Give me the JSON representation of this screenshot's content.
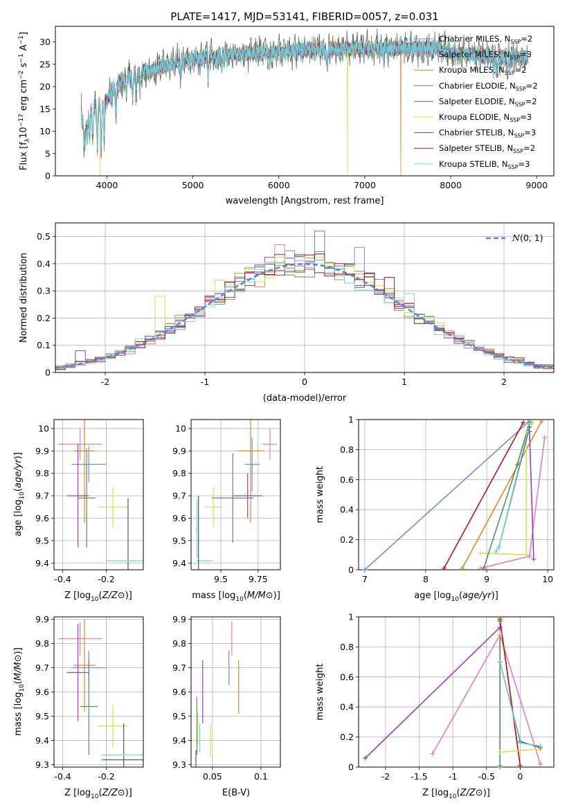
{
  "suptitle": "PLATE=1417, MJD=53141, FIBERID=0057, z=0.031",
  "colors": {
    "chab_miles": "#6a8fd8",
    "salp_miles": "#e97ab8",
    "krou_miles": "#e6841f",
    "chab_elodie": "#5c8f5c",
    "salp_elodie": "#9b3db3",
    "krou_elodie": "#c8e64a",
    "chab_stelib": "#555555",
    "salp_stelib": "#b31515",
    "krou_stelib": "#6fd3db",
    "normal": "#5b86d6"
  },
  "chart_data": [
    {
      "type": "line",
      "id": "spectrum",
      "xlabel": "wavelength [Angstrom, rest frame]",
      "ylabel": "Flux [f_λ 10^-17 erg cm^-2 s^-1 A^-1]",
      "xlim": [
        3400,
        9200
      ],
      "ylim": [
        0,
        33.5
      ],
      "xticks": [
        4000,
        5000,
        6000,
        7000,
        8000,
        9000
      ],
      "yticks": [
        0,
        5,
        10,
        15,
        20,
        25,
        30
      ],
      "grid": false,
      "legend_position": "top-right",
      "legend": [
        {
          "label": "Chabrier MILES, N",
          "sub": "SSP",
          "suffix": "=2",
          "color": "chab_miles"
        },
        {
          "label": "Salpeter MILES, N",
          "sub": "SSP",
          "suffix": "=3",
          "color": "salp_miles"
        },
        {
          "label": "Kroupa MILES, N",
          "sub": "SSP",
          "suffix": "=2",
          "color": "krou_miles"
        },
        {
          "label": "Chabrier ELODIE, N",
          "sub": "SSP",
          "suffix": "=2",
          "color": "chab_elodie"
        },
        {
          "label": "Salpeter ELODIE, N",
          "sub": "SSP",
          "suffix": "=2",
          "color": "salp_elodie"
        },
        {
          "label": "Kroupa ELODIE, N",
          "sub": "SSP",
          "suffix": "=3",
          "color": "krou_elodie"
        },
        {
          "label": "Chabrier STELIB, N",
          "sub": "SSP",
          "suffix": "=3",
          "color": "chab_stelib"
        },
        {
          "label": "Salpeter STELIB, N",
          "sub": "SSP",
          "suffix": "=2",
          "color": "salp_stelib"
        },
        {
          "label": "Kroupa STELIB, N",
          "sub": "SSP",
          "suffix": "=3",
          "color": "krou_stelib"
        }
      ],
      "continuum": [
        [
          3700,
          12
        ],
        [
          3800,
          14.5
        ],
        [
          3900,
          16
        ],
        [
          4000,
          17
        ],
        [
          4100,
          20
        ],
        [
          4300,
          22.5
        ],
        [
          4500,
          23.5
        ],
        [
          4700,
          25
        ],
        [
          5000,
          26.3
        ],
        [
          5300,
          27
        ],
        [
          5600,
          27.5
        ],
        [
          6000,
          27.8
        ],
        [
          6500,
          28.3
        ],
        [
          7000,
          28.5
        ],
        [
          7500,
          28.5
        ],
        [
          7800,
          28.6
        ],
        [
          8000,
          27.5
        ],
        [
          8300,
          27
        ],
        [
          8600,
          26.5
        ],
        [
          8900,
          26.5
        ]
      ],
      "absorption_lines": [
        [
          3734,
          6
        ],
        [
          3750,
          5
        ],
        [
          3771,
          5
        ],
        [
          3798,
          6
        ],
        [
          3835,
          7
        ],
        [
          3889,
          9
        ],
        [
          3934,
          11
        ],
        [
          3968,
          9
        ],
        [
          4102,
          6
        ],
        [
          4227,
          3
        ],
        [
          4300,
          5
        ],
        [
          4340,
          4
        ],
        [
          4383,
          3
        ],
        [
          4861,
          3
        ],
        [
          5175,
          4
        ],
        [
          5270,
          2
        ],
        [
          5335,
          2
        ],
        [
          5893,
          3
        ],
        [
          6563,
          4
        ],
        [
          8498,
          3
        ],
        [
          8542,
          4
        ],
        [
          8662,
          3
        ]
      ],
      "drops": [
        [
          3920,
          "krou_elodie"
        ],
        [
          6800,
          "krou_elodie"
        ],
        [
          7420,
          "krou_miles"
        ]
      ]
    },
    {
      "type": "histogram",
      "id": "residuals",
      "xlabel": "(data-model)/error",
      "ylabel": "Normed distribution",
      "xlim": [
        -2.5,
        2.5
      ],
      "ylim": [
        0,
        0.55
      ],
      "xticks": [
        -2,
        -1,
        0,
        1,
        2
      ],
      "yticks": [
        0.0,
        0.1,
        0.2,
        0.3,
        0.4,
        0.5
      ],
      "grid": true,
      "legend": [
        {
          "label": "N(0,1)",
          "color": "normal"
        }
      ],
      "legend_position": "top-right",
      "bin_width": 0.1,
      "spikes": [
        [
          0.15,
          0.52,
          "chab_elodie"
        ],
        [
          0.55,
          0.46,
          "chab_miles"
        ],
        [
          -0.25,
          0.47,
          "salp_miles"
        ],
        [
          -1.45,
          0.28,
          "krou_elodie"
        ],
        [
          -0.85,
          0.34,
          "krou_elodie"
        ],
        [
          0.85,
          0.35,
          "salp_stelib"
        ],
        [
          -2.25,
          0.08,
          "salp_elodie"
        ],
        [
          1.05,
          0.29,
          "krou_stelib"
        ]
      ]
    },
    {
      "type": "errorbar",
      "id": "age_vs_z",
      "xlabel": "Z [log10(Z/Z⊙)]",
      "ylabel": "age  [log10(age/yr)]",
      "xlim": [
        -0.44,
        -0.03
      ],
      "ylim": [
        9.37,
        10.04
      ],
      "xticks": [
        -0.4,
        -0.2
      ],
      "yticks": [
        9.4,
        9.5,
        9.6,
        9.7,
        9.8,
        9.9,
        10.0
      ],
      "grid": true,
      "points": [
        {
          "c": "salp_miles",
          "x": -0.32,
          "xe": 0.1,
          "y": 9.93,
          "ye": 0.07
        },
        {
          "c": "krou_miles",
          "x": -0.3,
          "xe": 0.05,
          "y": 9.9,
          "ye": 0.32
        },
        {
          "c": "chab_miles",
          "x": -0.28,
          "xe": 0.08,
          "y": 9.84,
          "ye": 0.08
        },
        {
          "c": "salp_elodie",
          "x": -0.33,
          "xe": 0.05,
          "y": 9.7,
          "ye": 0.23
        },
        {
          "c": "chab_elodie",
          "x": -0.29,
          "xe": 0.04,
          "y": 9.69,
          "ye": 0.22
        },
        {
          "c": "krou_elodie",
          "x": -0.17,
          "xe": 0.07,
          "y": 9.65,
          "ye": 0.09
        },
        {
          "c": "chab_stelib",
          "x": -0.1,
          "xe": 0.1,
          "y": 9.41,
          "ye": 0.28
        },
        {
          "c": "krou_stelib",
          "x": -0.1,
          "xe": 0.1,
          "y": 9.41,
          "ye": 0.005
        }
      ]
    },
    {
      "type": "errorbar",
      "id": "age_vs_mass",
      "xlabel": "mass [log10(M/M⊙)]",
      "ylabel": "",
      "xlim": [
        9.3,
        9.9
      ],
      "ylim": [
        9.37,
        10.04
      ],
      "xticks": [
        9.5,
        9.75
      ],
      "yticks": [
        9.4,
        9.5,
        9.6,
        9.7,
        9.8,
        9.9,
        10.0
      ],
      "grid": true,
      "points": [
        {
          "c": "salp_miles",
          "x": 9.83,
          "xe": 0.05,
          "y": 9.93,
          "ye": 0.07
        },
        {
          "c": "krou_miles",
          "x": 9.7,
          "xe": 0.09,
          "y": 9.9,
          "ye": 0.32
        },
        {
          "c": "chab_miles",
          "x": 9.71,
          "xe": 0.05,
          "y": 9.84,
          "ye": 0.12
        },
        {
          "c": "salp_elodie",
          "x": 9.68,
          "xe": 0.1,
          "y": 9.7,
          "ye": 0.1
        },
        {
          "c": "chab_elodie",
          "x": 9.58,
          "xe": 0.14,
          "y": 9.69,
          "ye": 0.2
        },
        {
          "c": "krou_elodie",
          "x": 9.45,
          "xe": 0.06,
          "y": 9.65,
          "ye": 0.09
        },
        {
          "c": "chab_stelib",
          "x": 9.35,
          "xe": 0.01,
          "y": 9.41,
          "ye": 0.29
        },
        {
          "c": "krou_stelib",
          "x": 9.4,
          "xe": 0.05,
          "y": 9.41,
          "ye": 0.005
        },
        {
          "c": "krou_stelib",
          "x": 9.34,
          "xe": 0.01,
          "y": 9.55,
          "ye": 0.13
        }
      ]
    },
    {
      "type": "line",
      "id": "mass_weight_age",
      "xlabel": "age  [log10(age/yr)]",
      "ylabel": "mass weight",
      "xlim": [
        6.9,
        10.1
      ],
      "ylim": [
        0,
        1
      ],
      "xticks": [
        7,
        8,
        9,
        10
      ],
      "yticks": [
        0.0,
        0.2,
        0.4,
        0.6,
        0.8,
        1.0
      ],
      "grid": true,
      "series": [
        {
          "c": "chab_miles",
          "pts": [
            [
              7.0,
              0.0
            ],
            [
              9.7,
              0.99
            ]
          ]
        },
        {
          "c": "krou_miles",
          "pts": [
            [
              8.6,
              0.01
            ],
            [
              9.9,
              0.99
            ]
          ]
        },
        {
          "c": "salp_stelib",
          "pts": [
            [
              8.3,
              0.01
            ],
            [
              9.6,
              0.98
            ]
          ]
        },
        {
          "c": "salp_miles",
          "pts": [
            [
              8.9,
              0.01
            ],
            [
              9.7,
              0.09
            ],
            [
              9.95,
              0.88
            ]
          ]
        },
        {
          "c": "salp_elodie",
          "pts": [
            [
              9.7,
              0.92
            ],
            [
              9.77,
              0.07
            ]
          ]
        },
        {
          "c": "krou_elodie",
          "pts": [
            [
              8.9,
              0.11
            ],
            [
              9.65,
              0.1
            ],
            [
              9.65,
              0.92
            ],
            [
              9.75,
              0.98
            ]
          ]
        },
        {
          "c": "chab_elodie",
          "pts": [
            [
              8.95,
              0.01
            ],
            [
              9.5,
              0.7
            ],
            [
              9.7,
              0.98
            ]
          ]
        },
        {
          "c": "chab_stelib",
          "pts": [
            [
              9.2,
              0.15
            ],
            [
              9.7,
              0.95
            ]
          ]
        },
        {
          "c": "krou_stelib",
          "pts": [
            [
              9.15,
              0.12
            ],
            [
              9.2,
              0.15
            ],
            [
              9.7,
              0.97
            ]
          ]
        }
      ]
    },
    {
      "type": "errorbar",
      "id": "mass_vs_z",
      "xlabel": "Z [log10(Z/Z⊙)]",
      "ylabel": "mass [log10(M/M⊙)]",
      "xlim": [
        -0.44,
        -0.03
      ],
      "ylim": [
        9.29,
        9.91
      ],
      "xticks": [
        -0.4,
        -0.2
      ],
      "yticks": [
        9.3,
        9.4,
        9.5,
        9.6,
        9.7,
        9.8,
        9.9
      ],
      "grid": true,
      "points": [
        {
          "c": "salp_miles",
          "x": -0.32,
          "xe": 0.1,
          "y": 9.82,
          "ye": 0.07
        },
        {
          "c": "krou_miles",
          "x": -0.3,
          "xe": 0.05,
          "y": 9.71,
          "ye": 0.19
        },
        {
          "c": "chab_miles",
          "x": -0.28,
          "xe": 0.08,
          "y": 9.7,
          "ye": 0.07
        },
        {
          "c": "salp_elodie",
          "x": -0.33,
          "xe": 0.05,
          "y": 9.68,
          "ye": 0.2
        },
        {
          "c": "chab_elodie",
          "x": -0.28,
          "xe": 0.04,
          "y": 9.54,
          "ye": 0.2
        },
        {
          "c": "krou_elodie",
          "x": -0.17,
          "xe": 0.07,
          "y": 9.46,
          "ye": 0.09
        },
        {
          "c": "chab_stelib",
          "x": -0.12,
          "xe": 0.1,
          "y": 9.32,
          "ye": 0.15
        },
        {
          "c": "krou_stelib",
          "x": -0.12,
          "xe": 0.1,
          "y": 9.34,
          "ye": 0.005
        }
      ]
    },
    {
      "type": "errorbar",
      "id": "mass_vs_ebv",
      "xlabel": "E(B-V)",
      "ylabel": "",
      "xlim": [
        0.028,
        0.12
      ],
      "ylim": [
        9.29,
        9.91
      ],
      "xticks": [
        0.05,
        0.1
      ],
      "yticks": [
        9.3,
        9.4,
        9.5,
        9.6,
        9.7,
        9.8,
        9.9
      ],
      "grid": true,
      "points": [
        {
          "c": "salp_miles",
          "x": 0.07,
          "xe": 0,
          "y": 9.82,
          "ye": 0.07
        },
        {
          "c": "krou_miles",
          "x": 0.077,
          "xe": 0,
          "y": 9.62,
          "ye": 0.11
        },
        {
          "c": "chab_miles",
          "x": 0.067,
          "xe": 0,
          "y": 9.7,
          "ye": 0.07
        },
        {
          "c": "salp_elodie",
          "x": 0.04,
          "xe": 0,
          "y": 9.6,
          "ye": 0.13
        },
        {
          "c": "chab_elodie",
          "x": 0.034,
          "xe": 0,
          "y": 9.46,
          "ye": 0.12
        },
        {
          "c": "krou_elodie",
          "x": 0.048,
          "xe": 0,
          "y": 9.4,
          "ye": 0.07
        },
        {
          "c": "chab_stelib",
          "x": 0.033,
          "xe": 0,
          "y": 9.32,
          "ye": 0.04
        },
        {
          "c": "krou_stelib",
          "x": 0.037,
          "xe": 0,
          "y": 9.41,
          "ye": 0.06
        },
        {
          "c": "krou_elodie",
          "x": 0.035,
          "xe": 0,
          "y": 9.45,
          "ye": 0.07
        }
      ]
    },
    {
      "type": "line",
      "id": "mass_weight_z",
      "xlabel": "Z [log10(Z/Z⊙)]",
      "ylabel": "mass weight",
      "xlim": [
        -2.4,
        0.5
      ],
      "ylim": [
        0,
        1
      ],
      "xticks": [
        -2.0,
        -1.5,
        -1.0,
        -0.5,
        0.0
      ],
      "yticks": [
        0.0,
        0.2,
        0.4,
        0.6,
        0.8,
        1.0
      ],
      "grid": true,
      "series": [
        {
          "c": "salp_elodie",
          "pts": [
            [
              -2.3,
              0.06
            ],
            [
              -0.3,
              0.93
            ]
          ]
        },
        {
          "c": "salp_miles",
          "pts": [
            [
              -1.3,
              0.09
            ],
            [
              -0.3,
              0.88
            ],
            [
              0.3,
              0.02
            ]
          ]
        },
        {
          "c": "chab_miles",
          "pts": [
            [
              -0.3,
              0.99
            ],
            [
              -0.3,
              0.0
            ]
          ]
        },
        {
          "c": "krou_miles",
          "pts": [
            [
              -0.3,
              0.99
            ],
            [
              0.0,
              0.01
            ]
          ]
        },
        {
          "c": "salp_stelib",
          "pts": [
            [
              -0.3,
              0.98
            ],
            [
              0.0,
              0.01
            ]
          ]
        },
        {
          "c": "krou_elodie",
          "pts": [
            [
              -0.3,
              0.89
            ],
            [
              -0.3,
              0.1
            ],
            [
              0.3,
              0.12
            ]
          ]
        },
        {
          "c": "chab_elodie",
          "pts": [
            [
              -0.3,
              0.97
            ],
            [
              -0.3,
              0.01
            ]
          ]
        },
        {
          "c": "chab_stelib",
          "pts": [
            [
              -0.3,
              0.7
            ],
            [
              0.0,
              0.17
            ],
            [
              0.3,
              0.13
            ]
          ]
        },
        {
          "c": "krou_stelib",
          "pts": [
            [
              -0.3,
              0.7
            ],
            [
              0.0,
              0.16
            ],
            [
              0.3,
              0.14
            ]
          ]
        }
      ]
    }
  ]
}
